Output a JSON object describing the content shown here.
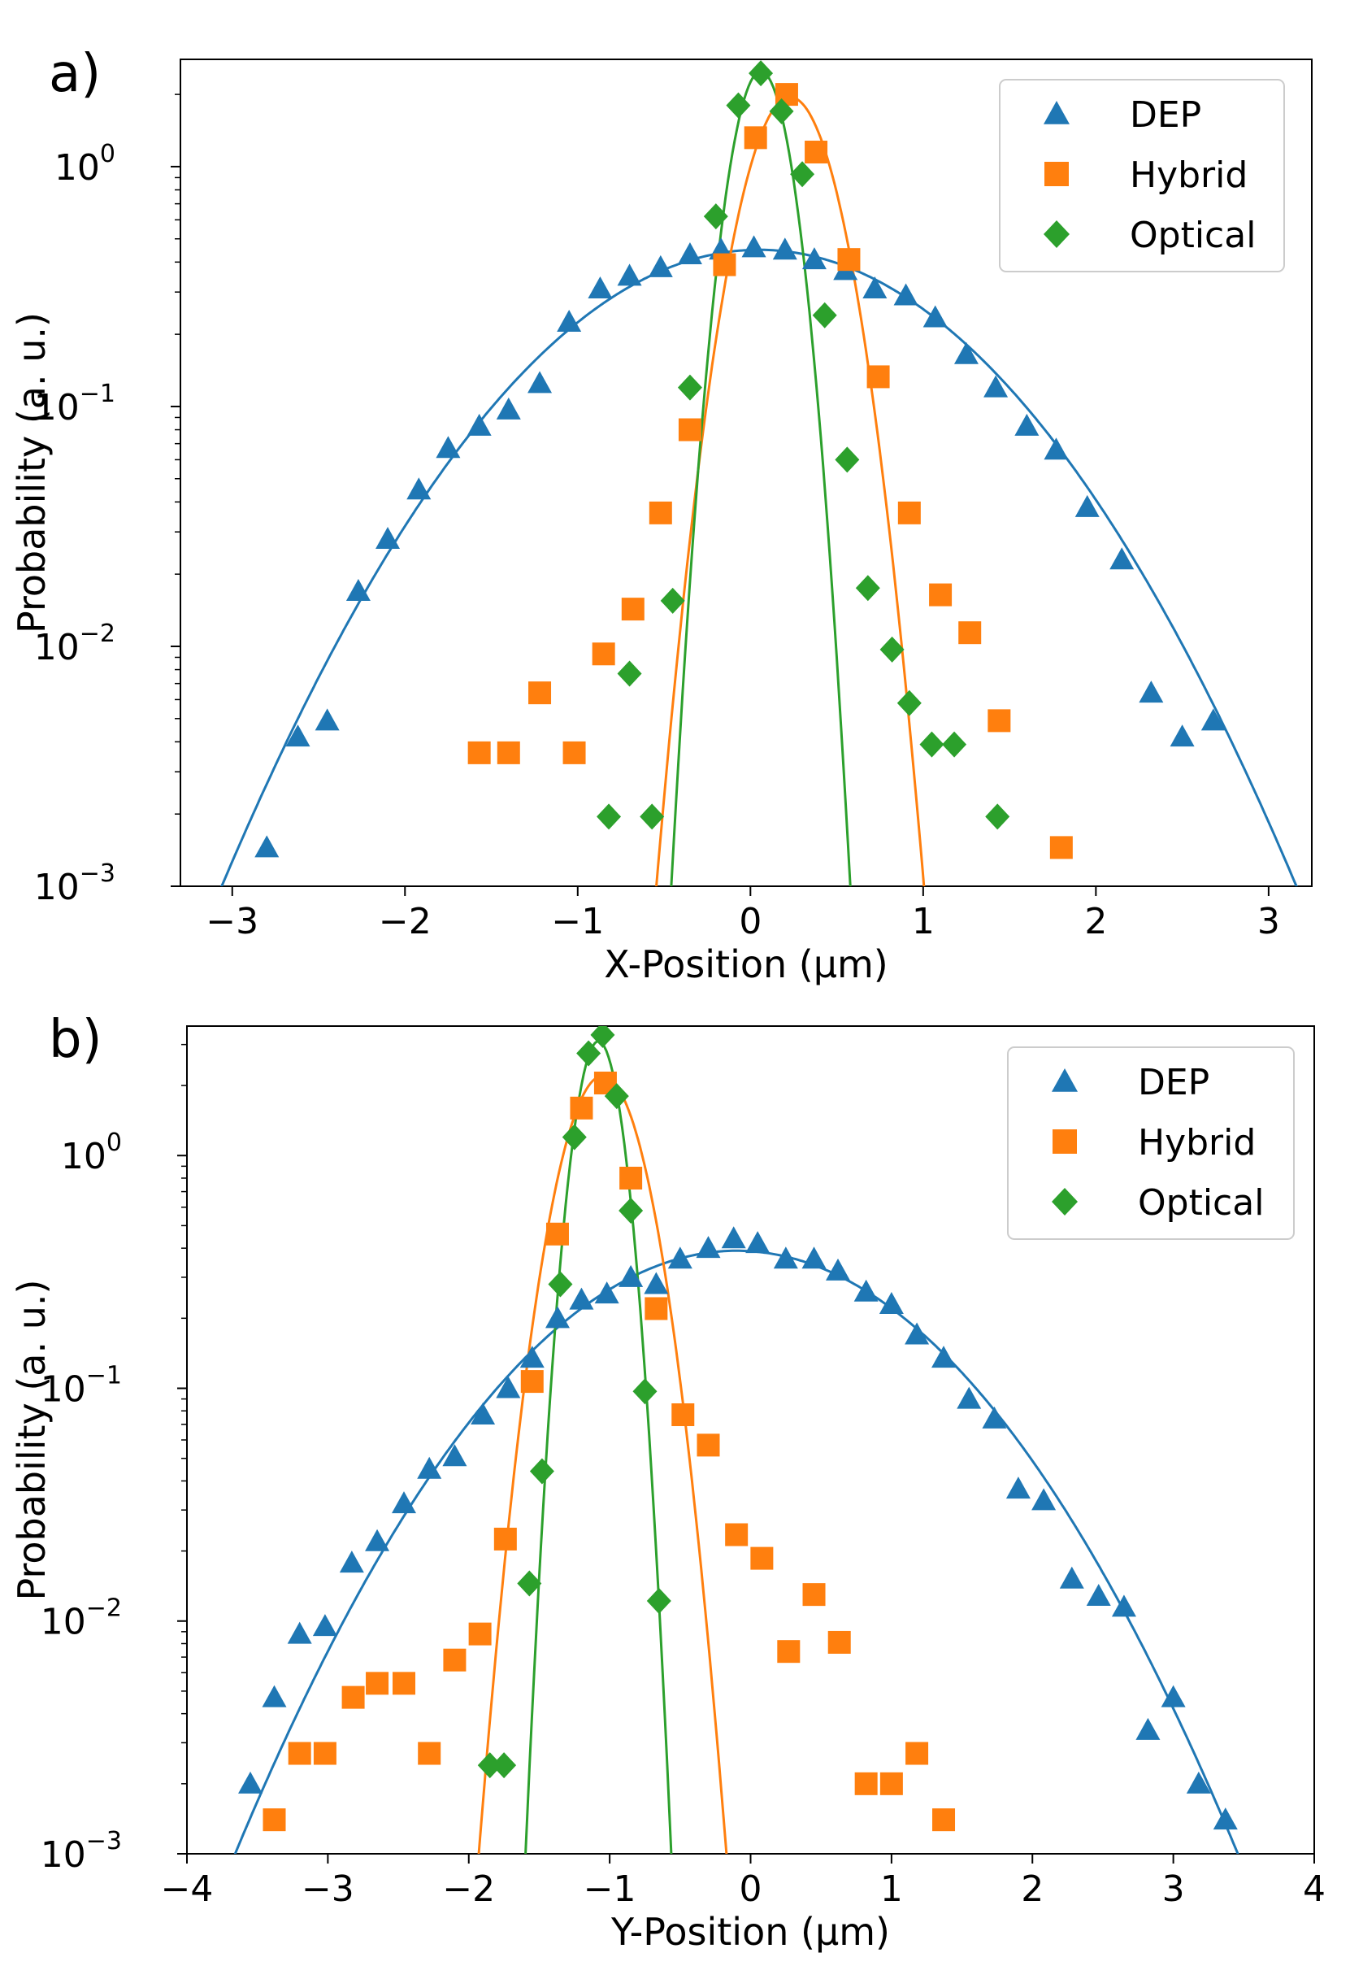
{
  "colors": {
    "DEP": "#1f77b4",
    "Hybrid": "#ff7f0e",
    "Optical": "#2ca02c"
  },
  "chart_data": [
    {
      "panel": "a)",
      "type": "scatter",
      "yscale": "log",
      "xlabel": "X-Position (μm)",
      "ylabel": "Probability (a. u.)",
      "xlim": [
        -3.3,
        3.25
      ],
      "ylim": [
        0.001,
        2.8
      ],
      "xticks": [
        -3,
        -2,
        -1,
        0,
        1,
        2,
        3
      ],
      "xtick_labels": [
        "−3",
        "−2",
        "−1",
        "0",
        "1",
        "2",
        "3"
      ],
      "yticks": [
        1,
        0.1,
        0.01,
        0.001
      ],
      "ytick_labels": [
        {
          "base": "10",
          "exp": "0"
        },
        {
          "base": "10",
          "exp": "−1"
        },
        {
          "base": "10",
          "exp": "−2"
        },
        {
          "base": "10",
          "exp": "−3"
        }
      ],
      "legend": {
        "position": "top-right",
        "entries": [
          "DEP",
          "Hybrid",
          "Optical"
        ]
      },
      "series": [
        {
          "name": "DEP",
          "marker": "triangle",
          "points": [
            [
              -2.8,
              0.00145
            ],
            [
              -2.62,
              0.0042
            ],
            [
              -2.45,
              0.0049
            ],
            [
              -2.27,
              0.017
            ],
            [
              -2.1,
              0.028
            ],
            [
              -1.92,
              0.045
            ],
            [
              -1.75,
              0.067
            ],
            [
              -1.57,
              0.083
            ],
            [
              -1.4,
              0.097
            ],
            [
              -1.22,
              0.125
            ],
            [
              -1.05,
              0.225
            ],
            [
              -0.87,
              0.31
            ],
            [
              -0.7,
              0.35
            ],
            [
              -0.52,
              0.38
            ],
            [
              -0.35,
              0.43
            ],
            [
              -0.17,
              0.45
            ],
            [
              0.02,
              0.46
            ],
            [
              0.2,
              0.45
            ],
            [
              0.37,
              0.41
            ],
            [
              0.55,
              0.37
            ],
            [
              0.72,
              0.31
            ],
            [
              0.9,
              0.29
            ],
            [
              1.07,
              0.235
            ],
            [
              1.25,
              0.165
            ],
            [
              1.42,
              0.12
            ],
            [
              1.6,
              0.083
            ],
            [
              1.77,
              0.066
            ],
            [
              1.95,
              0.038
            ],
            [
              2.15,
              0.023
            ],
            [
              2.32,
              0.0064
            ],
            [
              2.5,
              0.0042
            ],
            [
              2.68,
              0.0049
            ]
          ]
        },
        {
          "name": "Hybrid",
          "marker": "square",
          "points": [
            [
              -1.57,
              0.0036
            ],
            [
              -1.4,
              0.0036
            ],
            [
              -1.22,
              0.0064
            ],
            [
              -1.02,
              0.0036
            ],
            [
              -0.85,
              0.0093
            ],
            [
              -0.68,
              0.0143
            ],
            [
              -0.52,
              0.036
            ],
            [
              -0.35,
              0.08
            ],
            [
              -0.15,
              0.39
            ],
            [
              0.03,
              1.32
            ],
            [
              0.21,
              2.0
            ],
            [
              0.38,
              1.15
            ],
            [
              0.57,
              0.41
            ],
            [
              0.74,
              0.133
            ],
            [
              0.92,
              0.036
            ],
            [
              1.1,
              0.0164
            ],
            [
              1.27,
              0.0114
            ],
            [
              1.44,
              0.0049
            ],
            [
              1.8,
              0.00145
            ]
          ]
        },
        {
          "name": "Optical",
          "marker": "diamond",
          "points": [
            [
              -0.82,
              0.00195
            ],
            [
              -0.7,
              0.0077
            ],
            [
              -0.57,
              0.00195
            ],
            [
              -0.45,
              0.0155
            ],
            [
              -0.35,
              0.12
            ],
            [
              -0.2,
              0.62
            ],
            [
              -0.07,
              1.8
            ],
            [
              0.06,
              2.45
            ],
            [
              0.18,
              1.7
            ],
            [
              0.3,
              0.93
            ],
            [
              0.43,
              0.24
            ],
            [
              0.56,
              0.06
            ],
            [
              0.68,
              0.0175
            ],
            [
              0.82,
              0.0097
            ],
            [
              0.92,
              0.0058
            ],
            [
              1.05,
              0.0039
            ],
            [
              1.18,
              0.0039
            ],
            [
              1.43,
              0.00195
            ]
          ]
        }
      ],
      "fits": [
        {
          "name": "DEP",
          "mu": 0.05,
          "sigma": 0.89,
          "amplitude": 0.45
        },
        {
          "name": "Hybrid",
          "mu": 0.23,
          "sigma": 0.199,
          "amplitude": 1.95
        },
        {
          "name": "Optical",
          "mu": 0.06,
          "sigma": 0.131,
          "amplitude": 2.5
        }
      ]
    },
    {
      "panel": "b)",
      "type": "scatter",
      "yscale": "log",
      "xlabel": "Y-Position (μm)",
      "ylabel": "Probability (a. u.)",
      "xlim": [
        -4.0,
        4.0
      ],
      "ylim": [
        0.001,
        3.6
      ],
      "xticks": [
        -4,
        -3,
        -2,
        -1,
        0,
        1,
        2,
        3,
        4
      ],
      "xtick_labels": [
        "−4",
        "−3",
        "−2",
        "−1",
        "0",
        "1",
        "2",
        "3",
        "4"
      ],
      "yticks": [
        1,
        0.1,
        0.01,
        0.001
      ],
      "ytick_labels": [
        {
          "base": "10",
          "exp": "0"
        },
        {
          "base": "10",
          "exp": "−1"
        },
        {
          "base": "10",
          "exp": "−2"
        },
        {
          "base": "10",
          "exp": "−3"
        }
      ],
      "legend": {
        "position": "top-right",
        "entries": [
          "DEP",
          "Hybrid",
          "Optical"
        ]
      },
      "series": [
        {
          "name": "DEP",
          "marker": "triangle",
          "points": [
            [
              -3.55,
              0.002
            ],
            [
              -3.38,
              0.0047
            ],
            [
              -3.2,
              0.0088
            ],
            [
              -3.02,
              0.0095
            ],
            [
              -2.83,
              0.0178
            ],
            [
              -2.65,
              0.022
            ],
            [
              -2.46,
              0.032
            ],
            [
              -2.28,
              0.045
            ],
            [
              -2.1,
              0.051
            ],
            [
              -1.9,
              0.077
            ],
            [
              -1.72,
              0.1
            ],
            [
              -1.55,
              0.135
            ],
            [
              -1.37,
              0.2
            ],
            [
              -1.2,
              0.24
            ],
            [
              -1.02,
              0.255
            ],
            [
              -0.85,
              0.3
            ],
            [
              -0.67,
              0.28
            ],
            [
              -0.5,
              0.36
            ],
            [
              -0.3,
              0.4
            ],
            [
              -0.12,
              0.44
            ],
            [
              0.05,
              0.42
            ],
            [
              0.25,
              0.36
            ],
            [
              0.45,
              0.36
            ],
            [
              0.62,
              0.32
            ],
            [
              0.82,
              0.26
            ],
            [
              1.0,
              0.23
            ],
            [
              1.18,
              0.17
            ],
            [
              1.37,
              0.135
            ],
            [
              1.55,
              0.09
            ],
            [
              1.73,
              0.074
            ],
            [
              1.9,
              0.037
            ],
            [
              2.08,
              0.033
            ],
            [
              2.28,
              0.0152
            ],
            [
              2.47,
              0.0128
            ],
            [
              2.65,
              0.0115
            ],
            [
              2.82,
              0.0034
            ],
            [
              3.0,
              0.0047
            ],
            [
              3.18,
              0.002
            ],
            [
              3.37,
              0.0014
            ]
          ]
        },
        {
          "name": "Hybrid",
          "marker": "square",
          "points": [
            [
              -3.38,
              0.0014
            ],
            [
              -3.2,
              0.0027
            ],
            [
              -3.02,
              0.0027
            ],
            [
              -2.82,
              0.0047
            ],
            [
              -2.65,
              0.0054
            ],
            [
              -2.46,
              0.0054
            ],
            [
              -2.28,
              0.0027
            ],
            [
              -2.1,
              0.0068
            ],
            [
              -1.92,
              0.0088
            ],
            [
              -1.74,
              0.0225
            ],
            [
              -1.55,
              0.107
            ],
            [
              -1.37,
              0.46
            ],
            [
              -1.2,
              1.6
            ],
            [
              -1.03,
              2.05
            ],
            [
              -0.85,
              0.8
            ],
            [
              -0.67,
              0.22
            ],
            [
              -0.48,
              0.077
            ],
            [
              -0.3,
              0.057
            ],
            [
              -0.1,
              0.0235
            ],
            [
              0.08,
              0.0186
            ],
            [
              0.27,
              0.0074
            ],
            [
              0.45,
              0.013
            ],
            [
              0.63,
              0.0081
            ],
            [
              0.82,
              0.002
            ],
            [
              1.0,
              0.002
            ],
            [
              1.18,
              0.0027
            ],
            [
              1.37,
              0.0014
            ]
          ]
        },
        {
          "name": "Optical",
          "marker": "diamond",
          "points": [
            [
              -1.85,
              0.0024
            ],
            [
              -1.75,
              0.0024
            ],
            [
              -1.57,
              0.0145
            ],
            [
              -1.48,
              0.044
            ],
            [
              -1.35,
              0.28
            ],
            [
              -1.25,
              1.2
            ],
            [
              -1.15,
              2.75
            ],
            [
              -1.05,
              3.3
            ],
            [
              -0.95,
              1.8
            ],
            [
              -0.85,
              0.58
            ],
            [
              -0.75,
              0.097
            ],
            [
              -0.65,
              0.0122
            ]
          ]
        }
      ],
      "fits": [
        {
          "name": "DEP",
          "mu": -0.1,
          "sigma": 1.03,
          "amplitude": 0.39
        },
        {
          "name": "Hybrid",
          "mu": -1.05,
          "sigma": 0.224,
          "amplitude": 2.2
        },
        {
          "name": "Optical",
          "mu": -1.08,
          "sigma": 0.129,
          "amplitude": 3.1
        }
      ]
    }
  ]
}
